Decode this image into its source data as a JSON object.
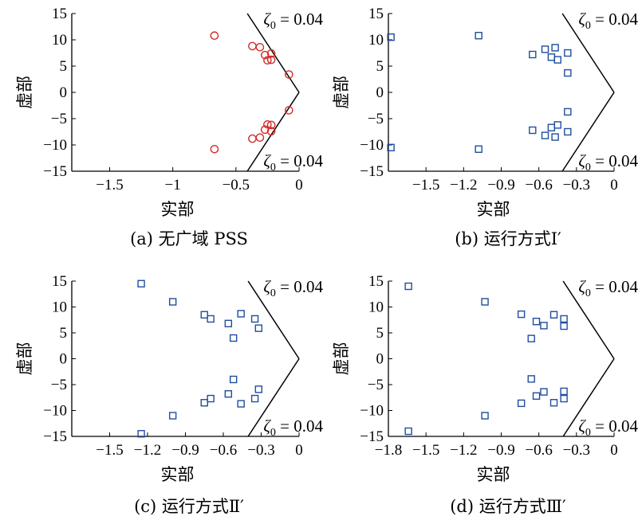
{
  "chart_data": [
    {
      "type": "scatter",
      "caption": "(a) 无广域 PSS",
      "xlabel": "实部",
      "ylabel": "虚部",
      "xlim": [
        -1.8,
        0
      ],
      "ylim": [
        -15,
        15
      ],
      "xticks": [
        -1.5,
        -1,
        -0.5,
        0
      ],
      "xtick_labels": [
        "−1.5",
        "−1",
        "−0.5",
        "0"
      ],
      "yticks": [
        15,
        10,
        5,
        0,
        -5,
        -10,
        -15
      ],
      "ytick_labels": [
        "15",
        "10",
        "5",
        "0",
        "−5",
        "−10",
        "−15"
      ],
      "marker": "circle",
      "marker_color": "#d42a2a",
      "damping_label_top": "0.04",
      "damping_label_bottom": "0.04",
      "damping_label_prefix": "ζ",
      "damping_label_subscript": "0",
      "damping_label_eq": " = ",
      "points": [
        [
          -0.67,
          10.8
        ],
        [
          -0.37,
          8.8
        ],
        [
          -0.31,
          8.6
        ],
        [
          -0.27,
          7.1
        ],
        [
          -0.22,
          7.4
        ],
        [
          -0.25,
          6.1
        ],
        [
          -0.22,
          6.2
        ],
        [
          -0.08,
          3.4
        ],
        [
          -0.08,
          -3.4
        ],
        [
          -0.22,
          -6.2
        ],
        [
          -0.25,
          -6.1
        ],
        [
          -0.22,
          -7.4
        ],
        [
          -0.27,
          -7.1
        ],
        [
          -0.31,
          -8.6
        ],
        [
          -0.37,
          -8.8
        ],
        [
          -0.67,
          -10.8
        ]
      ]
    },
    {
      "type": "scatter",
      "caption": "(b) 运行方式Ⅰ′",
      "xlabel": "实部",
      "ylabel": "虚部",
      "xlim": [
        -1.8,
        0
      ],
      "ylim": [
        -15,
        15
      ],
      "xticks": [
        -1.5,
        -1.2,
        -0.9,
        -0.6,
        -0.3,
        0
      ],
      "xtick_labels": [
        "−1.5",
        "−1.2",
        "−0.9",
        "−0.6",
        "−0.3",
        "0"
      ],
      "yticks": [
        15,
        10,
        5,
        0,
        -5,
        -10,
        -15
      ],
      "ytick_labels": [
        "15",
        "10",
        "5",
        "0",
        "−5",
        "−10",
        "−15"
      ],
      "marker": "square",
      "marker_color": "#1f4e9e",
      "damping_label_top": "0.04",
      "damping_label_bottom": "0.04",
      "damping_label_prefix": "ζ",
      "damping_label_subscript": "0",
      "damping_label_eq": " = ",
      "points": [
        [
          -1.78,
          10.5
        ],
        [
          -1.08,
          10.8
        ],
        [
          -0.65,
          7.2
        ],
        [
          -0.55,
          8.2
        ],
        [
          -0.47,
          8.5
        ],
        [
          -0.5,
          6.7
        ],
        [
          -0.45,
          6.2
        ],
        [
          -0.37,
          7.5
        ],
        [
          -0.37,
          3.7
        ],
        [
          -0.37,
          -3.7
        ],
        [
          -0.45,
          -6.2
        ],
        [
          -0.5,
          -6.7
        ],
        [
          -0.37,
          -7.5
        ],
        [
          -0.65,
          -7.2
        ],
        [
          -0.55,
          -8.2
        ],
        [
          -0.47,
          -8.5
        ],
        [
          -1.78,
          -10.5
        ],
        [
          -1.08,
          -10.8
        ]
      ]
    },
    {
      "type": "scatter",
      "caption": "(c) 运行方式Ⅱ′",
      "xlabel": "实部",
      "ylabel": "虚部",
      "xlim": [
        -1.8,
        0
      ],
      "ylim": [
        -15,
        15
      ],
      "xticks": [
        -1.5,
        -1.2,
        -0.9,
        -0.6,
        -0.3,
        0
      ],
      "xtick_labels": [
        "−1.5",
        "−1.2",
        "−0.9",
        "−0.6",
        "−0.3",
        "0"
      ],
      "yticks": [
        15,
        10,
        5,
        0,
        -5,
        -10,
        -15
      ],
      "ytick_labels": [
        "15",
        "10",
        "5",
        "0",
        "−5",
        "−10",
        "−15"
      ],
      "marker": "square",
      "marker_color": "#1f4e9e",
      "damping_label_top": "0.04",
      "damping_label_bottom": "0.04",
      "damping_label_prefix": "ζ",
      "damping_label_subscript": "0",
      "damping_label_eq": " = ",
      "points": [
        [
          -1.25,
          14.5
        ],
        [
          -1.0,
          11.0
        ],
        [
          -0.75,
          8.5
        ],
        [
          -0.7,
          7.7
        ],
        [
          -0.56,
          6.8
        ],
        [
          -0.52,
          4.0
        ],
        [
          -0.46,
          8.7
        ],
        [
          -0.35,
          7.7
        ],
        [
          -0.32,
          5.9
        ],
        [
          -0.32,
          -5.9
        ],
        [
          -0.35,
          -7.7
        ],
        [
          -0.46,
          -8.7
        ],
        [
          -0.52,
          -4.0
        ],
        [
          -0.56,
          -6.8
        ],
        [
          -0.7,
          -7.7
        ],
        [
          -0.75,
          -8.5
        ],
        [
          -1.0,
          -11.0
        ],
        [
          -1.25,
          -14.5
        ]
      ]
    },
    {
      "type": "scatter",
      "caption": "(d) 运行方式Ⅲ′",
      "xlabel": "实部",
      "ylabel": "虚部",
      "xlim": [
        -1.8,
        0
      ],
      "ylim": [
        -15,
        15
      ],
      "xticks": [
        -1.8,
        -1.5,
        -1.2,
        -0.9,
        -0.6,
        -0.3,
        0
      ],
      "xtick_labels": [
        "−1.8",
        "−1.5",
        "−1.2",
        "−0.9",
        "−0.6",
        "−0.3",
        "0"
      ],
      "yticks": [
        15,
        10,
        5,
        0,
        -5,
        -10,
        -15
      ],
      "ytick_labels": [
        "15",
        "10",
        "5",
        "0",
        "−5",
        "−10",
        "−15"
      ],
      "marker": "square",
      "marker_color": "#1f4e9e",
      "damping_label_top": "0.04",
      "damping_label_bottom": "0.04",
      "damping_label_prefix": "ζ",
      "damping_label_subscript": "0",
      "damping_label_eq": " = ",
      "points": [
        [
          -1.64,
          14.0
        ],
        [
          -1.03,
          11.0
        ],
        [
          -0.74,
          8.6
        ],
        [
          -0.62,
          7.2
        ],
        [
          -0.56,
          6.4
        ],
        [
          -0.66,
          3.9
        ],
        [
          -0.48,
          8.5
        ],
        [
          -0.4,
          7.7
        ],
        [
          -0.4,
          6.3
        ],
        [
          -0.4,
          -6.3
        ],
        [
          -0.4,
          -7.7
        ],
        [
          -0.48,
          -8.5
        ],
        [
          -0.66,
          -3.9
        ],
        [
          -0.56,
          -6.4
        ],
        [
          -0.62,
          -7.2
        ],
        [
          -0.74,
          -8.6
        ],
        [
          -1.03,
          -11.0
        ],
        [
          -1.64,
          -14.0
        ]
      ]
    }
  ]
}
